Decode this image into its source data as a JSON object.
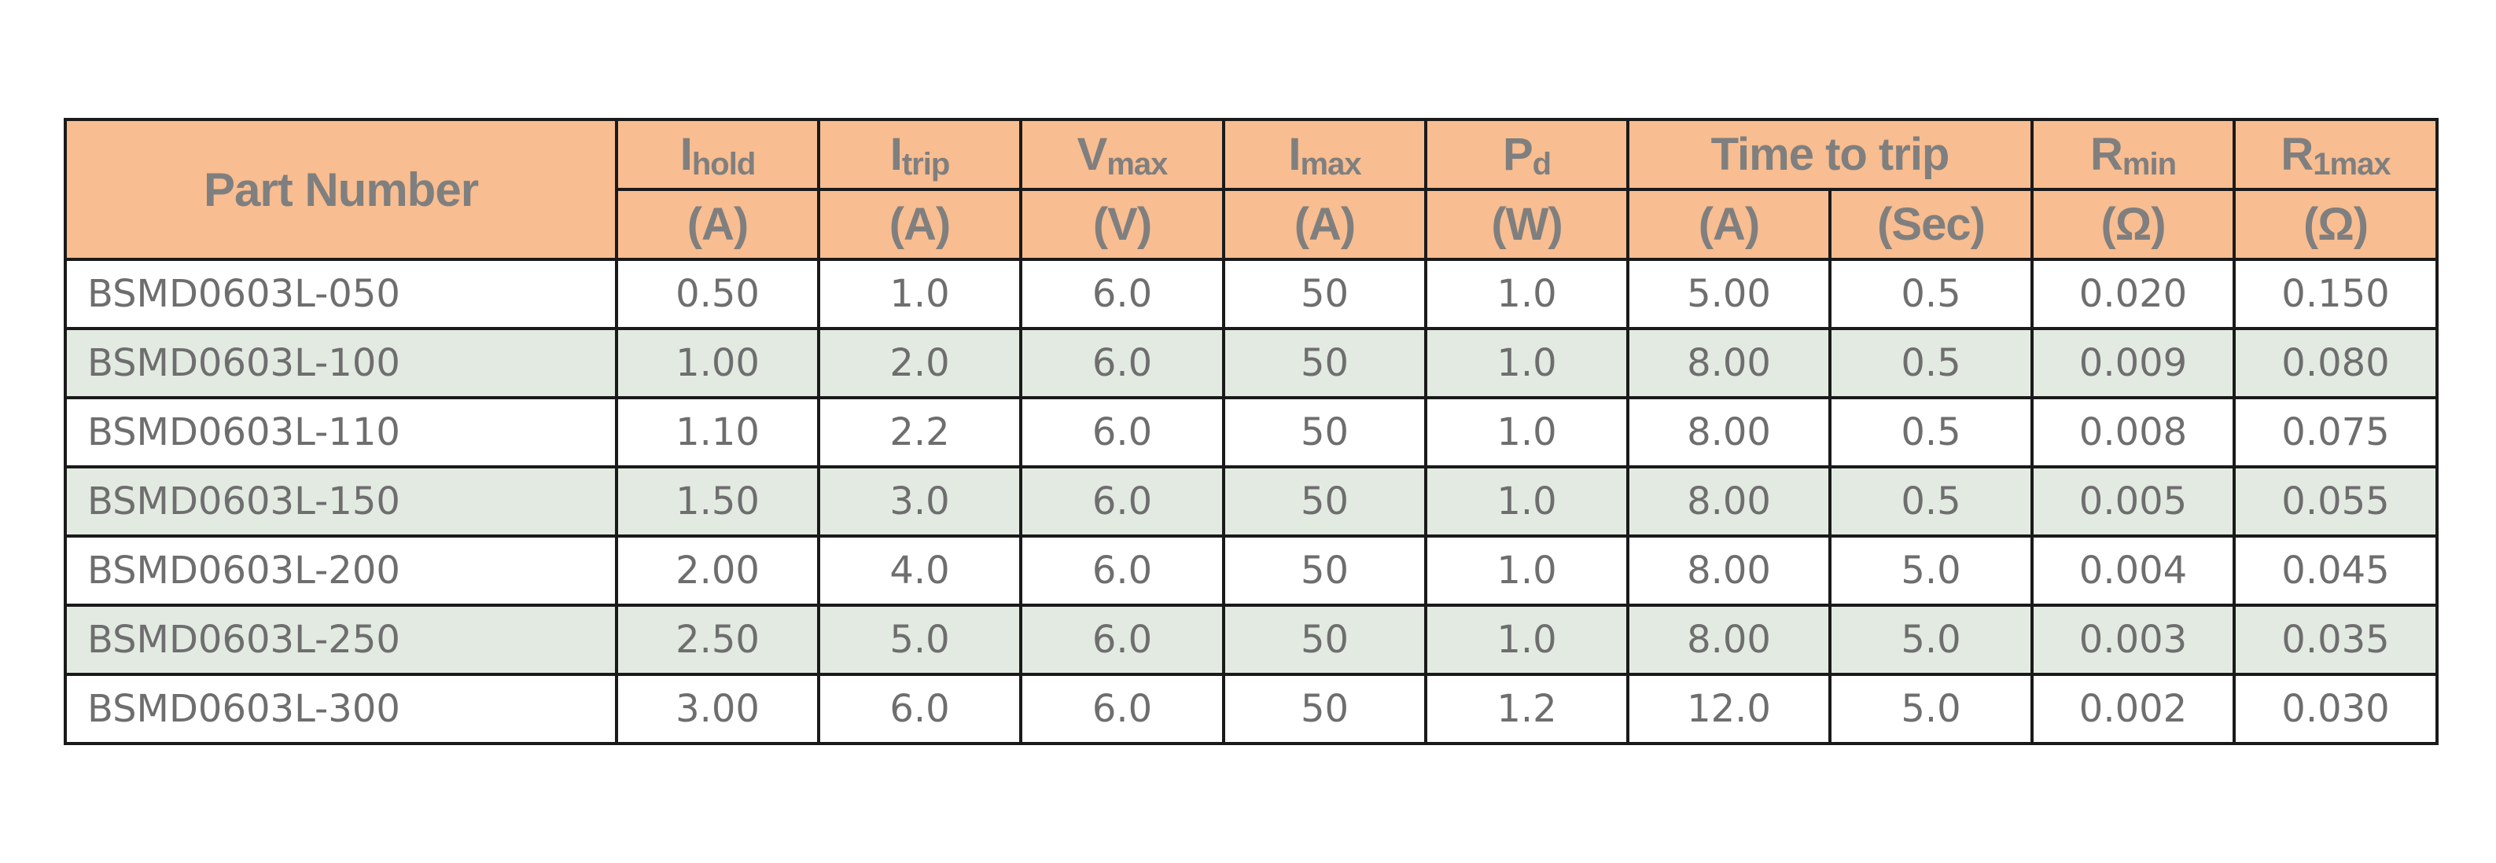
{
  "header": {
    "part_number": "Part Number",
    "ihold": {
      "main": "I",
      "sub": "hold",
      "unit": "(A)"
    },
    "itrip": {
      "main": "I",
      "sub": "trip",
      "unit": "(A)"
    },
    "vmax": {
      "main": "V",
      "sub": "max",
      "unit": "(V)"
    },
    "imax": {
      "main": "I",
      "sub": "max",
      "unit": "(A)"
    },
    "pd": {
      "main": "P",
      "sub": "d",
      "unit": "(W)"
    },
    "time_to_trip": {
      "label": "Time to trip",
      "unit_a": "(A)",
      "unit_sec": "(Sec)"
    },
    "rmin": {
      "main": "R",
      "sub": "min",
      "unit": "(Ω)"
    },
    "r1max": {
      "main": "R",
      "sub": "1max",
      "unit": "(Ω)"
    }
  },
  "rows": [
    {
      "part": "BSMD0603L-050",
      "ihold": "0.50",
      "itrip": "1.0",
      "vmax": "6.0",
      "imax": "50",
      "pd": "1.0",
      "ttt_a": "5.00",
      "ttt_sec": "0.5",
      "rmin": "0.020",
      "r1max": "0.150"
    },
    {
      "part": "BSMD0603L-100",
      "ihold": "1.00",
      "itrip": "2.0",
      "vmax": "6.0",
      "imax": "50",
      "pd": "1.0",
      "ttt_a": "8.00",
      "ttt_sec": "0.5",
      "rmin": "0.009",
      "r1max": "0.080"
    },
    {
      "part": "BSMD0603L-110",
      "ihold": "1.10",
      "itrip": "2.2",
      "vmax": "6.0",
      "imax": "50",
      "pd": "1.0",
      "ttt_a": "8.00",
      "ttt_sec": "0.5",
      "rmin": "0.008",
      "r1max": "0.075"
    },
    {
      "part": "BSMD0603L-150",
      "ihold": "1.50",
      "itrip": "3.0",
      "vmax": "6.0",
      "imax": "50",
      "pd": "1.0",
      "ttt_a": "8.00",
      "ttt_sec": "0.5",
      "rmin": "0.005",
      "r1max": "0.055"
    },
    {
      "part": "BSMD0603L-200",
      "ihold": "2.00",
      "itrip": "4.0",
      "vmax": "6.0",
      "imax": "50",
      "pd": "1.0",
      "ttt_a": "8.00",
      "ttt_sec": "5.0",
      "rmin": "0.004",
      "r1max": "0.045"
    },
    {
      "part": "BSMD0603L-250",
      "ihold": "2.50",
      "itrip": "5.0",
      "vmax": "6.0",
      "imax": "50",
      "pd": "1.0",
      "ttt_a": "8.00",
      "ttt_sec": "5.0",
      "rmin": "0.003",
      "r1max": "0.035"
    },
    {
      "part": "BSMD0603L-300",
      "ihold": "3.00",
      "itrip": "6.0",
      "vmax": "6.0",
      "imax": "50",
      "pd": "1.2",
      "ttt_a": "12.0",
      "ttt_sec": "5.0",
      "rmin": "0.002",
      "r1max": "0.030"
    }
  ],
  "colors": {
    "header_bg": "#f8bd90",
    "header_text": "#7f7f7f",
    "alt_row_bg": "#e2eae2",
    "body_text": "#6e6e6e",
    "border": "#1a1a1a"
  }
}
